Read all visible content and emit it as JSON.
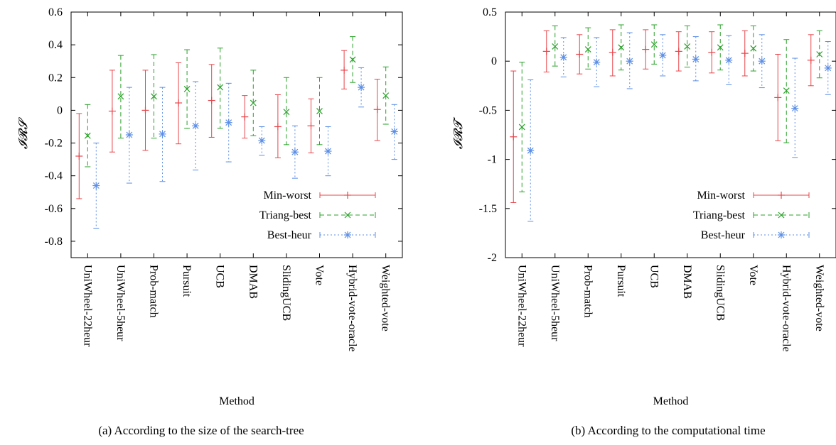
{
  "chart_data": [
    {
      "type": "errorbar",
      "caption": "(a) According to the size of the search-tree",
      "xlabel": "Method",
      "ylabel": "𝓘𝓡𝓢",
      "ylim": [
        -0.9,
        0.6
      ],
      "yticks": [
        "0.6",
        "0.4",
        "0.2",
        "0",
        "-0.2",
        "-0.4",
        "-0.6",
        "-0.8"
      ],
      "ytick_values": [
        0.6,
        0.4,
        0.2,
        0,
        -0.2,
        -0.4,
        -0.6,
        -0.8
      ],
      "categories": [
        "UniWheel-22heur",
        "UniWheel-5heur",
        "Prob-match",
        "Pursuit",
        "UCB",
        "DMAB",
        "SlidingUCB",
        "Vote",
        "Hybrid-vote-oracle",
        "Weighted-vote"
      ],
      "legend_position": "bottom-right",
      "series": [
        {
          "name": "Min-worst",
          "color": "#e8454b",
          "dash": "",
          "marker": "plus",
          "mean": [
            -0.28,
            -0.005,
            0.0,
            0.045,
            0.06,
            -0.04,
            -0.1,
            -0.095,
            0.245,
            0.005
          ],
          "low": [
            -0.54,
            -0.255,
            -0.245,
            -0.205,
            -0.165,
            -0.17,
            -0.29,
            -0.26,
            0.13,
            -0.185
          ],
          "high": [
            -0.02,
            0.245,
            0.245,
            0.29,
            0.28,
            0.09,
            0.095,
            0.07,
            0.365,
            0.19
          ]
        },
        {
          "name": "Triang-best",
          "color": "#2aa02a",
          "dash": "6,4",
          "marker": "cross",
          "mean": [
            -0.155,
            0.085,
            0.085,
            0.13,
            0.14,
            0.045,
            -0.01,
            -0.005,
            0.31,
            0.09
          ],
          "low": [
            -0.345,
            -0.17,
            -0.17,
            -0.11,
            -0.11,
            -0.155,
            -0.21,
            -0.21,
            0.17,
            -0.085
          ],
          "high": [
            0.035,
            0.335,
            0.34,
            0.37,
            0.38,
            0.245,
            0.2,
            0.2,
            0.45,
            0.265
          ]
        },
        {
          "name": "Best-heur",
          "color": "#5b8ee6",
          "dash": "2,3",
          "marker": "star",
          "mean": [
            -0.46,
            -0.15,
            -0.145,
            -0.095,
            -0.075,
            -0.185,
            -0.255,
            -0.25,
            0.14,
            -0.13
          ],
          "low": [
            -0.72,
            -0.445,
            -0.435,
            -0.365,
            -0.315,
            -0.275,
            -0.415,
            -0.4,
            0.02,
            -0.3
          ],
          "high": [
            -0.2,
            0.14,
            0.14,
            0.175,
            0.165,
            -0.1,
            -0.095,
            -0.1,
            0.26,
            0.035
          ]
        }
      ]
    },
    {
      "type": "errorbar",
      "caption": "(b) According to the computational time",
      "xlabel": "Method",
      "ylabel": "𝓘𝓡𝓣",
      "ylim": [
        -2,
        0.5
      ],
      "yticks": [
        "0.5",
        "0",
        "-0.5",
        "-1",
        "-1.5",
        "-2"
      ],
      "ytick_values": [
        0.5,
        0,
        -0.5,
        -1,
        -1.5,
        -2
      ],
      "categories": [
        "UniWheel-22heur",
        "UniWheel-5heur",
        "Prob-match",
        "Pursuit",
        "UCB",
        "DMAB",
        "SlidingUCB",
        "Vote",
        "Hybrid-vote-oracle",
        "Weighted-vote"
      ],
      "legend_position": "bottom-right",
      "series": [
        {
          "name": "Min-worst",
          "color": "#e8454b",
          "dash": "",
          "marker": "plus",
          "mean": [
            -0.77,
            0.1,
            0.07,
            0.09,
            0.12,
            0.1,
            0.09,
            0.08,
            -0.37,
            0.01
          ],
          "low": [
            -1.44,
            -0.11,
            -0.13,
            -0.15,
            -0.08,
            -0.1,
            -0.12,
            -0.15,
            -0.81,
            -0.25
          ],
          "high": [
            -0.1,
            0.31,
            0.27,
            0.32,
            0.32,
            0.3,
            0.3,
            0.31,
            0.07,
            0.27
          ]
        },
        {
          "name": "Triang-best",
          "color": "#2aa02a",
          "dash": "6,4",
          "marker": "cross",
          "mean": [
            -0.67,
            0.15,
            0.12,
            0.14,
            0.17,
            0.15,
            0.14,
            0.13,
            -0.3,
            0.07
          ],
          "low": [
            -1.33,
            -0.05,
            -0.08,
            -0.09,
            -0.03,
            -0.06,
            -0.09,
            -0.1,
            -0.83,
            -0.17
          ],
          "high": [
            -0.01,
            0.36,
            0.34,
            0.37,
            0.37,
            0.36,
            0.37,
            0.36,
            0.22,
            0.31
          ]
        },
        {
          "name": "Best-heur",
          "color": "#5b8ee6",
          "dash": "2,3",
          "marker": "star",
          "mean": [
            -0.91,
            0.04,
            -0.01,
            0.0,
            0.06,
            0.02,
            0.01,
            0.0,
            -0.48,
            -0.07
          ],
          "low": [
            -1.63,
            -0.16,
            -0.26,
            -0.28,
            -0.15,
            -0.2,
            -0.24,
            -0.27,
            -0.98,
            -0.34
          ],
          "high": [
            -0.19,
            0.24,
            0.24,
            0.29,
            0.27,
            0.25,
            0.26,
            0.27,
            0.03,
            0.2
          ]
        }
      ]
    }
  ]
}
